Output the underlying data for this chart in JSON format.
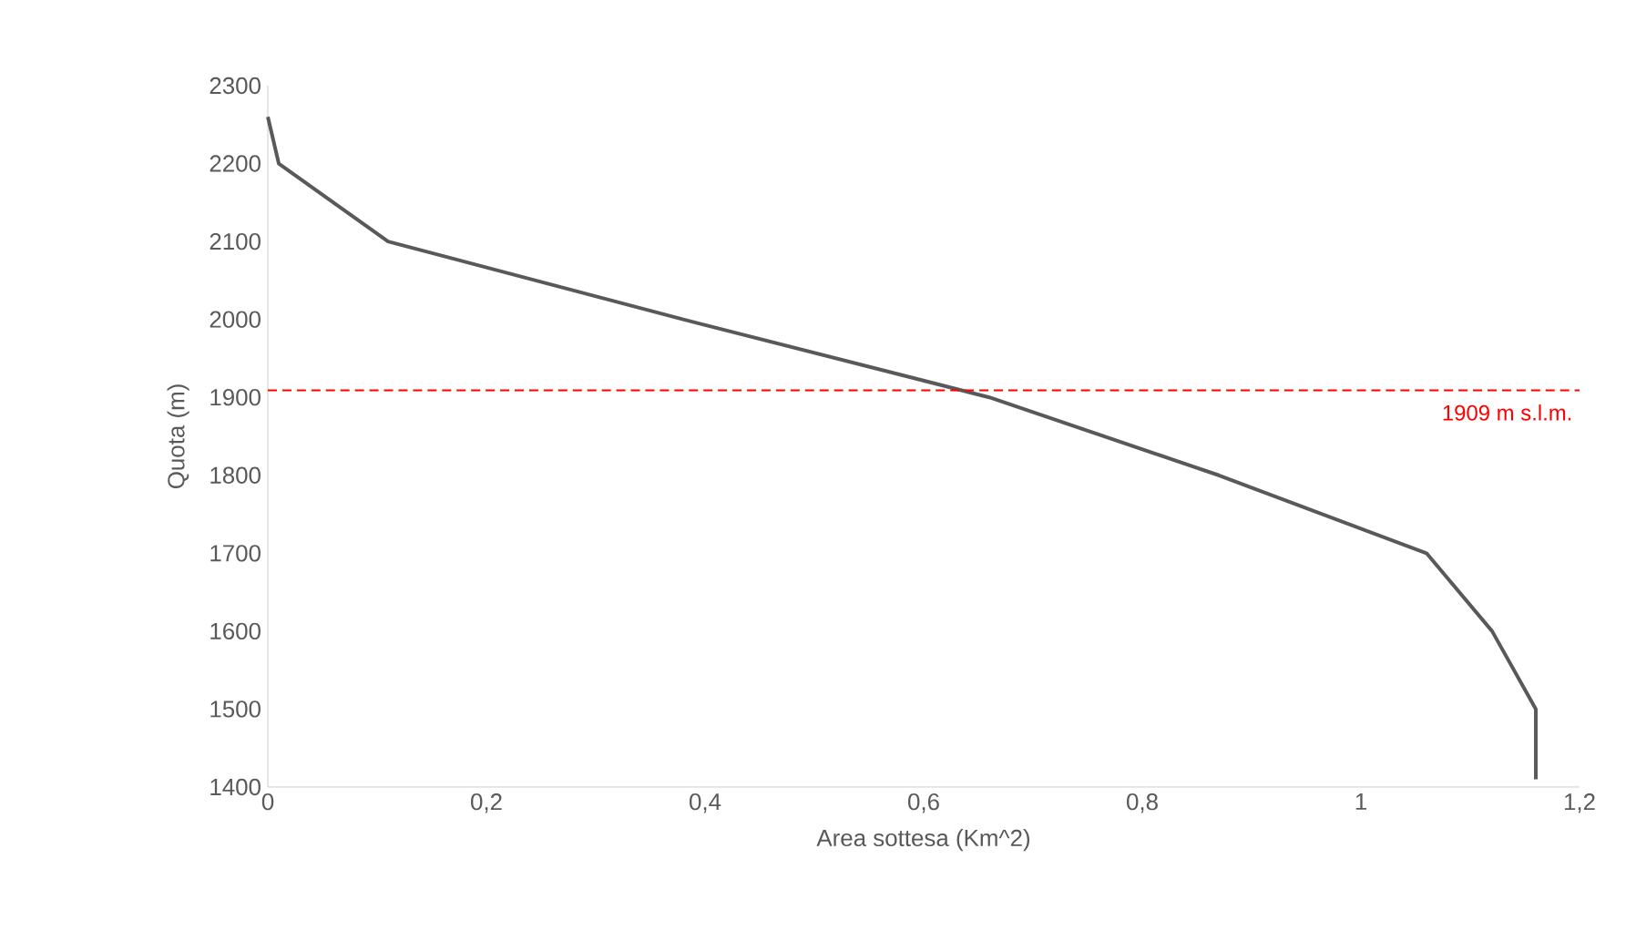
{
  "chart_data": {
    "type": "line",
    "xlabel": "Area sottesa (Km^2)",
    "ylabel": "Quota (m)",
    "x": [
      0,
      0.01,
      0.11,
      0.38,
      0.66,
      0.87,
      1.06,
      1.12,
      1.16,
      1.16
    ],
    "series": [
      {
        "color": "#595959",
        "values": [
          2260,
          2200,
          2100,
          2000,
          1900,
          1800,
          1700,
          1600,
          1500,
          1410
        ]
      }
    ],
    "xlim": [
      0,
      1.2
    ],
    "ylim": [
      1400,
      2300
    ],
    "xticks": [
      {
        "value": 0,
        "label": "0"
      },
      {
        "value": 0.2,
        "label": "0,2"
      },
      {
        "value": 0.4,
        "label": "0,4"
      },
      {
        "value": 0.6,
        "label": "0,6"
      },
      {
        "value": 0.8,
        "label": "0,8"
      },
      {
        "value": 1,
        "label": "1"
      },
      {
        "value": 1.2,
        "label": "1,2"
      }
    ],
    "yticks": [
      1400,
      1500,
      1600,
      1700,
      1800,
      1900,
      2000,
      2100,
      2200,
      2300
    ],
    "ref_lines": [
      {
        "axis": "y",
        "value": 1909,
        "label": "1909 m s.l.m.",
        "color": "#ff0000",
        "line_style": "dashed"
      }
    ],
    "marker": "none",
    "line_style": "solid"
  }
}
